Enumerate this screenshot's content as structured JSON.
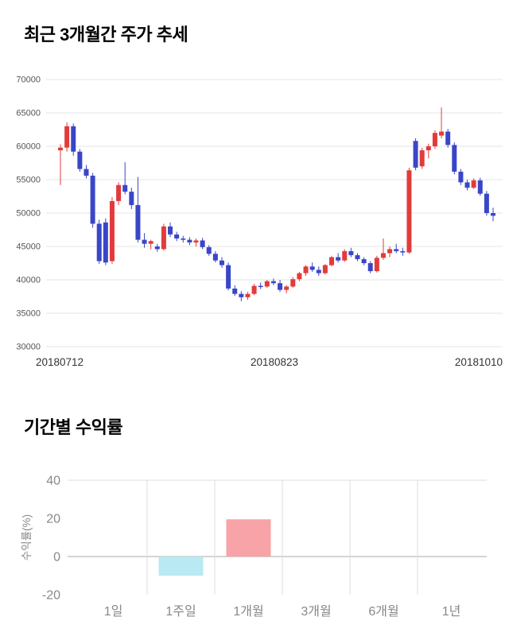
{
  "titles": {
    "price_trend": "최근 3개월간 주가 추세",
    "period_returns": "기간별 수익률"
  },
  "chart_data": [
    {
      "type": "candlestick",
      "title": "최근 3개월간 주가 추세",
      "ylim": [
        30000,
        70000
      ],
      "y_ticks": [
        30000,
        35000,
        40000,
        45000,
        50000,
        55000,
        60000,
        65000,
        70000
      ],
      "x_tick_labels": [
        "20180712",
        "20180823",
        "20181010"
      ],
      "grid": "horizontal",
      "up_color": "#e23b3b",
      "down_color": "#3a46c8",
      "candles": [
        [
          59400,
          60300,
          54200,
          59800
        ],
        [
          59800,
          63600,
          59200,
          63000
        ],
        [
          63000,
          63400,
          58600,
          59200
        ],
        [
          59200,
          59600,
          56200,
          56600
        ],
        [
          56600,
          57200,
          55200,
          55600
        ],
        [
          55600,
          56000,
          47800,
          48400
        ],
        [
          48400,
          49000,
          42400,
          42800
        ],
        [
          48600,
          49200,
          42200,
          42600
        ],
        [
          42800,
          52400,
          42400,
          51800
        ],
        [
          51800,
          54600,
          51200,
          54200
        ],
        [
          54200,
          57600,
          52800,
          53200
        ],
        [
          53200,
          53800,
          50600,
          51200
        ],
        [
          51200,
          55400,
          45600,
          46000
        ],
        [
          46000,
          47000,
          44800,
          45400
        ],
        [
          45400,
          46000,
          44600,
          45800
        ],
        [
          45000,
          45400,
          44200,
          44600
        ],
        [
          44600,
          48400,
          44400,
          48000
        ],
        [
          48000,
          48600,
          46400,
          46800
        ],
        [
          46800,
          47200,
          45800,
          46200
        ],
        [
          46200,
          46600,
          45600,
          46000
        ],
        [
          46000,
          46400,
          45200,
          45600
        ],
        [
          45600,
          46200,
          45000,
          45900
        ],
        [
          45900,
          46300,
          44600,
          44900
        ],
        [
          44900,
          45200,
          43600,
          43900
        ],
        [
          43900,
          44300,
          42600,
          42900
        ],
        [
          42900,
          43400,
          41800,
          42200
        ],
        [
          42200,
          42600,
          38400,
          38700
        ],
        [
          38700,
          39200,
          37600,
          37900
        ],
        [
          37900,
          38300,
          36800,
          37400
        ],
        [
          37400,
          38200,
          37000,
          37900
        ],
        [
          37900,
          39400,
          37700,
          39100
        ],
        [
          39100,
          39600,
          38600,
          39000
        ],
        [
          39000,
          40000,
          38800,
          39800
        ],
        [
          39800,
          40200,
          39200,
          39500
        ],
        [
          39500,
          40000,
          38200,
          38500
        ],
        [
          38500,
          39200,
          38000,
          39000
        ],
        [
          39000,
          40400,
          38800,
          40100
        ],
        [
          40100,
          41200,
          39800,
          41000
        ],
        [
          41000,
          42200,
          40600,
          42000
        ],
        [
          42000,
          42600,
          41200,
          41500
        ],
        [
          41500,
          42000,
          40600,
          41000
        ],
        [
          41000,
          42400,
          40800,
          42200
        ],
        [
          42200,
          43600,
          42000,
          43400
        ],
        [
          43400,
          44000,
          42600,
          42900
        ],
        [
          42900,
          44600,
          42700,
          44300
        ],
        [
          44300,
          44800,
          43400,
          43700
        ],
        [
          43700,
          44000,
          42800,
          43100
        ],
        [
          43100,
          43400,
          42200,
          42500
        ],
        [
          42500,
          42800,
          41000,
          41300
        ],
        [
          41300,
          43600,
          41100,
          43300
        ],
        [
          43300,
          46200,
          43000,
          44000
        ],
        [
          44000,
          45000,
          43400,
          44600
        ],
        [
          44600,
          45400,
          44000,
          44300
        ],
        [
          44300,
          44800,
          43600,
          44100
        ],
        [
          44100,
          56800,
          43900,
          56400
        ],
        [
          60800,
          61200,
          56400,
          56800
        ],
        [
          57000,
          59800,
          56600,
          59400
        ],
        [
          59400,
          60400,
          58200,
          60000
        ],
        [
          60000,
          62400,
          59600,
          62000
        ],
        [
          61600,
          65800,
          61200,
          62200
        ],
        [
          62200,
          62600,
          59800,
          60200
        ],
        [
          60200,
          60600,
          55800,
          56200
        ],
        [
          56200,
          56600,
          54200,
          54600
        ],
        [
          54600,
          55000,
          53400,
          53800
        ],
        [
          53800,
          55200,
          53600,
          54900
        ],
        [
          54900,
          55300,
          52600,
          52900
        ],
        [
          52900,
          53300,
          49600,
          50000
        ],
        [
          50000,
          50800,
          48800,
          49600
        ]
      ]
    },
    {
      "type": "bar",
      "title": "기간별 수익률",
      "categories": [
        "1일",
        "1주일",
        "1개월",
        "3개월",
        "6개월",
        "1년"
      ],
      "values": [
        0,
        -10,
        19.5,
        0,
        0,
        0
      ],
      "ylabel": "수익률(%)",
      "y_ticks": [
        -20,
        0,
        20,
        40
      ],
      "ylim": [
        -20,
        40
      ],
      "grid": "vertical-between-categories, zero-line, top-border",
      "positive_color": "#f7a3a7",
      "negative_color": "#b9e9f2"
    }
  ]
}
